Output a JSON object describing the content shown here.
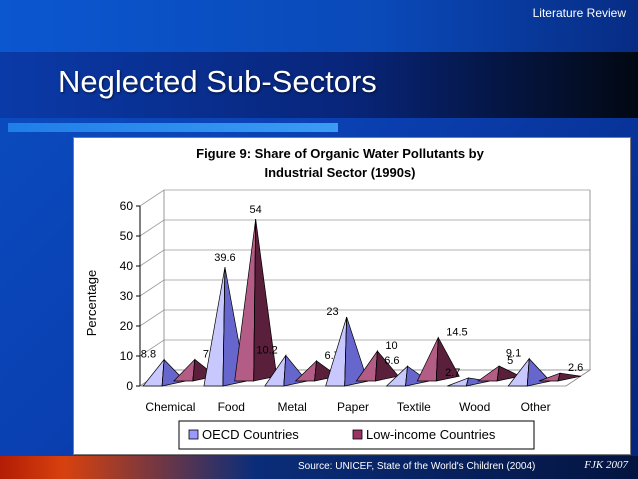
{
  "header": {
    "section_label": "Literature Review"
  },
  "slide": {
    "title": "Neglected Sub-Sectors"
  },
  "footer": {
    "source": "Source: UNICEF, State of the World's Children (2004)",
    "author": "FJK 2007"
  },
  "colors": {
    "oecd": "#9999ff",
    "low_income": "#993366"
  },
  "chart_data": {
    "type": "bar",
    "title_line1": "Figure 9: Share of Organic Water Pollutants by",
    "title_line2": "Industrial Sector (1990s)",
    "ylabel": "Percentage",
    "ylim": [
      0,
      60
    ],
    "yticks": [
      0,
      10,
      20,
      30,
      40,
      50,
      60
    ],
    "categories": [
      "Chemical",
      "Food",
      "Metal",
      "Paper",
      "Textile",
      "Wood",
      "Other"
    ],
    "series": [
      {
        "name": "OECD Countries",
        "values": [
          8.8,
          39.6,
          10.2,
          23,
          6.6,
          2.7,
          9.1
        ]
      },
      {
        "name": "Low-income Countries",
        "values": [
          7.2,
          54,
          6.7,
          10,
          14.5,
          5,
          2.6
        ]
      }
    ],
    "legend_position": "bottom",
    "grid": true
  }
}
